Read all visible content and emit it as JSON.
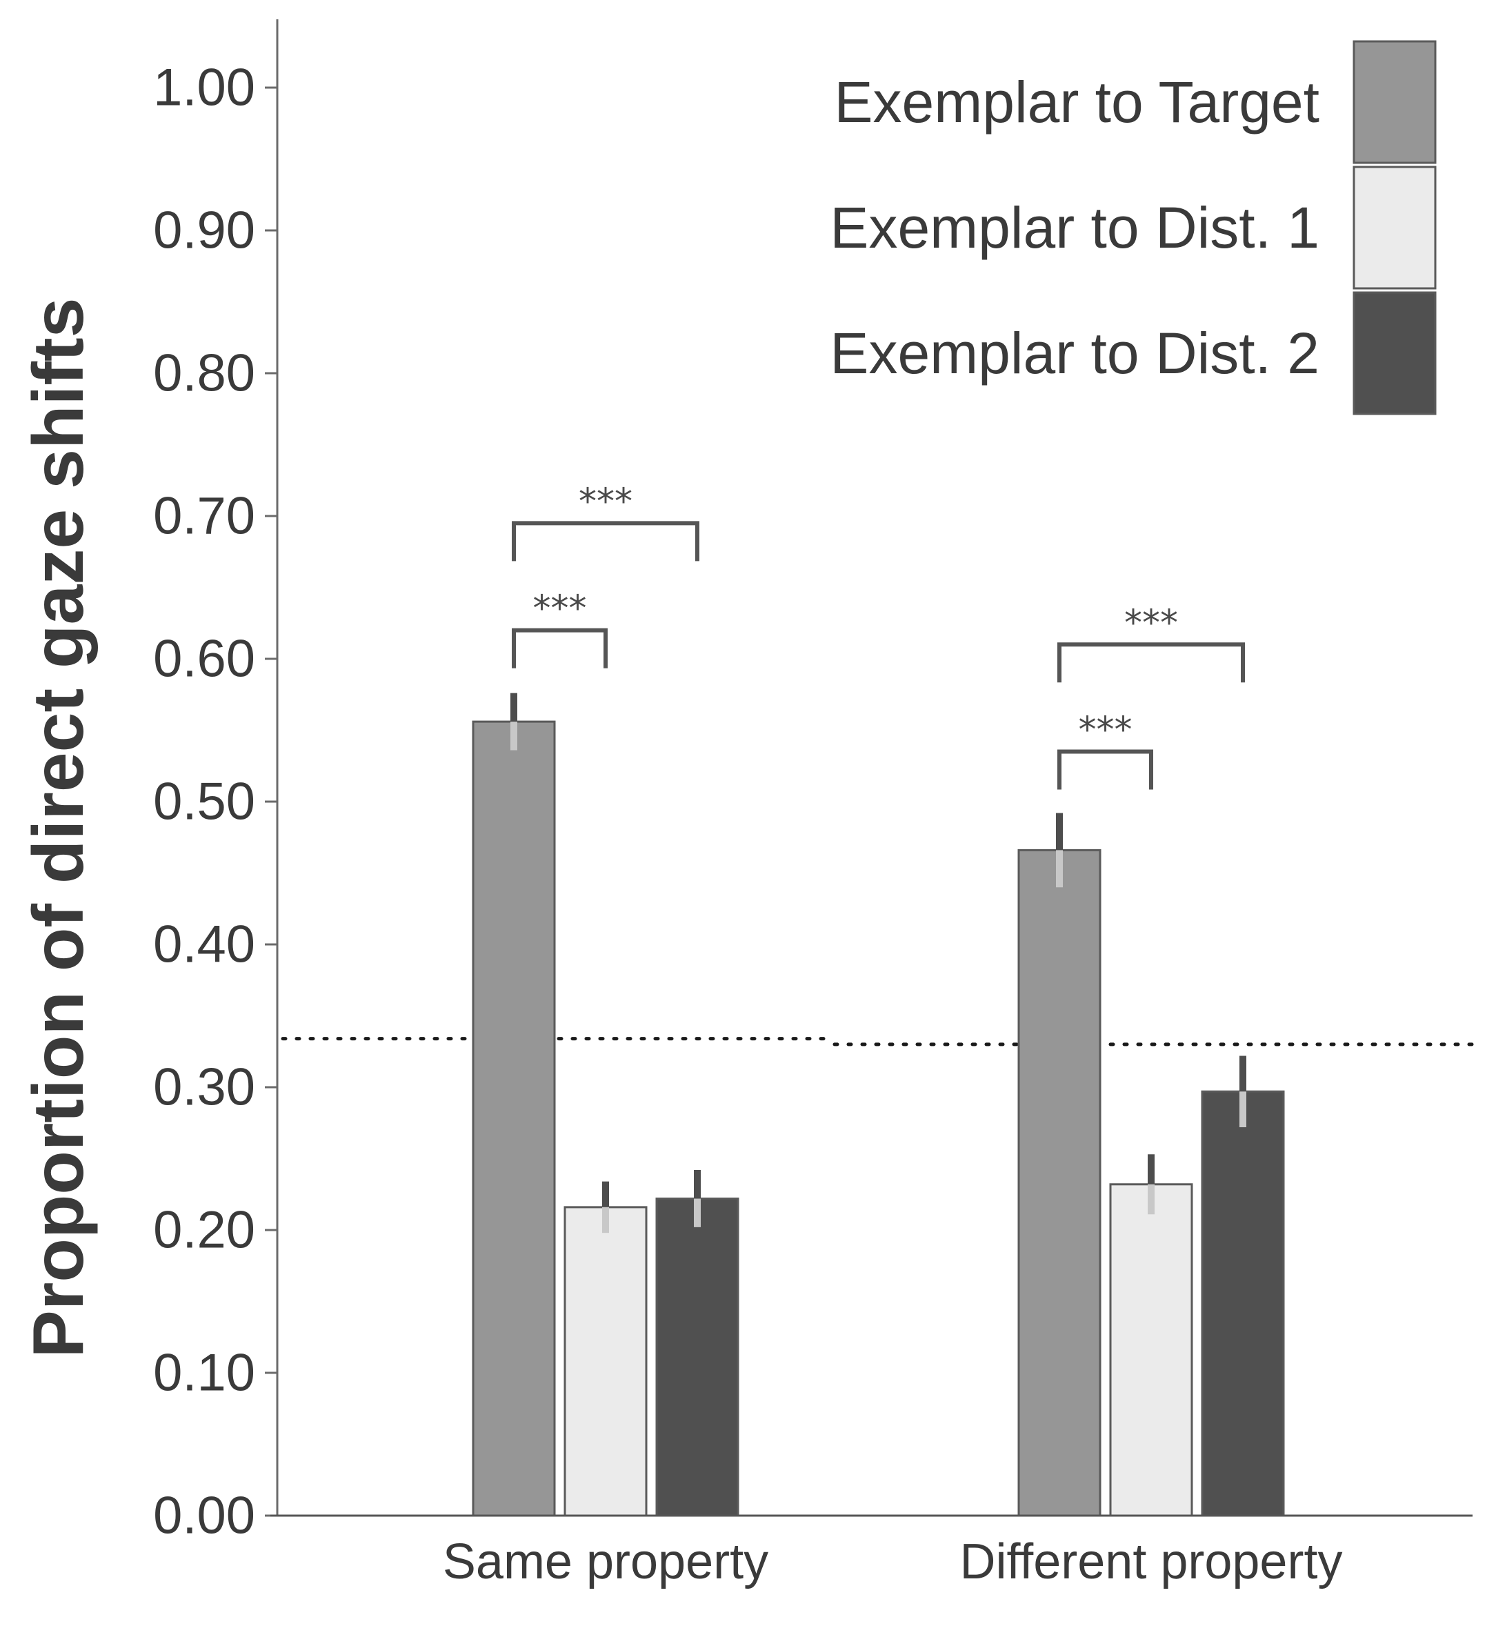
{
  "chart_data": {
    "type": "bar",
    "title": "",
    "xlabel": "",
    "ylabel": "Proportion of direct gaze shifts",
    "ylim": [
      0,
      1.05
    ],
    "yticks": [
      "0.00",
      "0.10",
      "0.20",
      "0.30",
      "0.40",
      "0.50",
      "0.60",
      "0.70",
      "0.80",
      "0.90",
      "1.00"
    ],
    "grid": false,
    "legend_position": "top-right",
    "categories": [
      "Same property",
      "Different property"
    ],
    "series": [
      {
        "name": "Exemplar to Target",
        "color": "#969696",
        "values": [
          0.556,
          0.466
        ],
        "error": [
          0.02,
          0.026
        ]
      },
      {
        "name": "Exemplar to Dist. 1",
        "color": "#ebebeb",
        "values": [
          0.216,
          0.232
        ],
        "error": [
          0.018,
          0.021
        ]
      },
      {
        "name": "Exemplar to Dist. 2",
        "color": "#505050",
        "values": [
          0.222,
          0.297
        ],
        "error": [
          0.02,
          0.025
        ]
      }
    ],
    "reference_lines": [
      {
        "category": "Same property",
        "value": 0.334,
        "style": "dotted"
      },
      {
        "category": "Different property",
        "value": 0.33,
        "style": "dotted"
      }
    ],
    "annotations": [
      {
        "category": "Same property",
        "from": "Exemplar to Target",
        "to": "Exemplar to Dist. 1",
        "label": "***",
        "level": 0.62
      },
      {
        "category": "Same property",
        "from": "Exemplar to Target",
        "to": "Exemplar to Dist. 2",
        "label": "***",
        "level": 0.695
      },
      {
        "category": "Different property",
        "from": "Exemplar to Target",
        "to": "Exemplar to Dist. 1",
        "label": "***",
        "level": 0.535
      },
      {
        "category": "Different property",
        "from": "Exemplar to Target",
        "to": "Exemplar to Dist. 2",
        "label": "***",
        "level": 0.61
      }
    ]
  }
}
